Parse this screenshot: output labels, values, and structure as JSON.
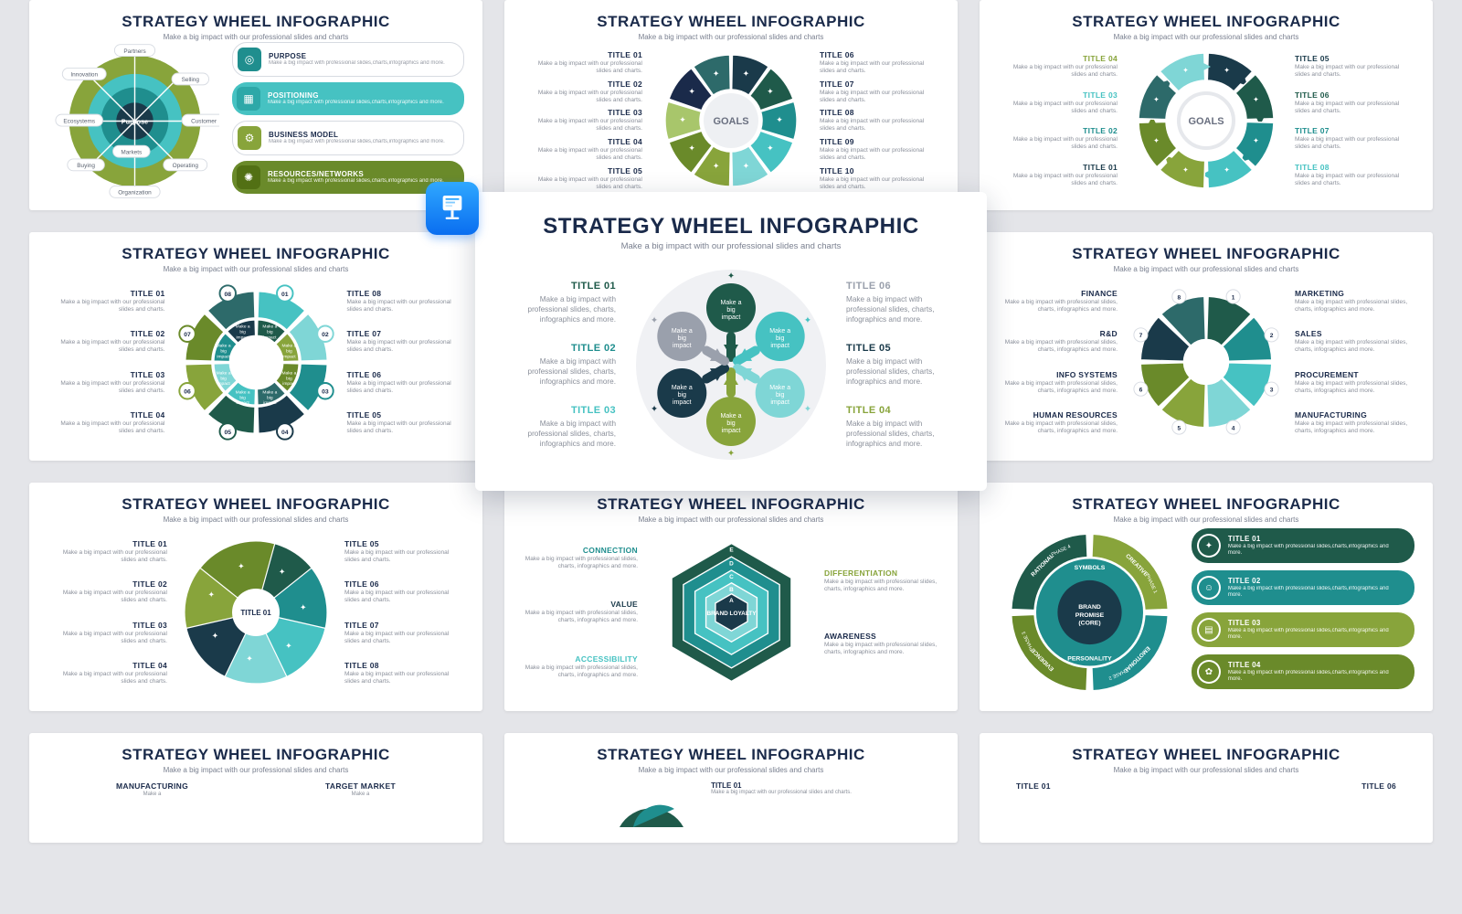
{
  "common": {
    "title": "STRATEGY WHEEL INFOGRAPHIC",
    "subtitle": "Make a big impact with our professional slides and charts",
    "desc_short": "Make a big impact with our professional slides and charts.",
    "desc_long": "Make a big impact with professional slides, charts, infographics and more."
  },
  "palette": {
    "olive": "#88a43b",
    "olive_dark": "#6a8a2a",
    "navy": "#1a3a4a",
    "teal": "#1f8e8e",
    "teal_light": "#46c2c2",
    "aqua": "#7fd6d6",
    "forest": "#1f5a4a",
    "gray": "#9aa0ac",
    "gray_light": "#d9dce2",
    "title_color": "#1a2a4a"
  },
  "main": {
    "title": "STRATEGY WHEEL INFOGRAPHIC",
    "subtitle": "Make a big impact with our professional slides and charts",
    "left": [
      {
        "label": "TITLE 01",
        "color": "#1f5a4a"
      },
      {
        "label": "TITLE 02",
        "color": "#1f8e8e"
      },
      {
        "label": "TITLE 03",
        "color": "#46c2c2"
      }
    ],
    "right": [
      {
        "label": "TITLE 06",
        "color": "#9aa0ac"
      },
      {
        "label": "TITLE 05",
        "color": "#1a3a4a"
      },
      {
        "label": "TITLE 04",
        "color": "#88a43b"
      }
    ],
    "desc": "Make a big impact with professional slides, charts, infographics and more.",
    "bubble_text": "Make a big impact",
    "bubble_colors": [
      "#1f5a4a",
      "#46c2c2",
      "#7fd6d6",
      "#88a43b",
      "#1a3a4a",
      "#9aa0ac"
    ],
    "bg_circle": "#f0f1f4"
  },
  "slide1": {
    "center": "Purpose",
    "ring_labels": [
      "Partners",
      "Selling",
      "Customer",
      "Operating",
      "Organization",
      "Buying",
      "Markets",
      "Ecosystems",
      "Innovation"
    ],
    "ring_colors_outer": "#88a43b",
    "ring_colors_inner": "#1f8e8e",
    "pills": [
      {
        "label": "PURPOSE",
        "color": "#1f8e8e",
        "outline": true
      },
      {
        "label": "POSITIONING",
        "color": "#46c2c2",
        "outline": false
      },
      {
        "label": "BUSINESS MODEL",
        "color": "#88a43b",
        "outline": true
      },
      {
        "label": "RESOURCES/NETWORKS",
        "color": "#6a8a2a",
        "outline": false
      }
    ],
    "pill_desc": "Make a big impact with professional slides,charts,infographics and more."
  },
  "slide2": {
    "center": "GOALS",
    "segments": 10,
    "colors": [
      "#1a3a4a",
      "#1f5a4a",
      "#1f8e8e",
      "#46c2c2",
      "#7fd6d6",
      "#88a43b",
      "#6a8a2a",
      "#a8c66b",
      "#1a2a4a",
      "#2d6a6a"
    ],
    "left_titles": [
      "TITLE 01",
      "TITLE 02",
      "TITLE 03",
      "TITLE 04",
      "TITLE 05"
    ],
    "right_titles": [
      "TITLE 06",
      "TITLE 07",
      "TITLE 08",
      "TITLE 09",
      "TITLE 10"
    ]
  },
  "slide3": {
    "center": "GOALS",
    "segments": 8,
    "arrow_colors": [
      "#1a3a4a",
      "#1f5a4a",
      "#1f8e8e",
      "#46c2c2",
      "#88a43b",
      "#6a8a2a",
      "#2d6a6a",
      "#7fd6d6"
    ],
    "left_titles": [
      "TITLE 04",
      "TITLE 03",
      "TITLE 02",
      "TITLE 01"
    ],
    "left_colors": [
      "#88a43b",
      "#46c2c2",
      "#1f8e8e",
      "#1a3a4a"
    ],
    "right_titles": [
      "TITLE 05",
      "TITLE 06",
      "TITLE 07",
      "TITLE 08"
    ],
    "right_colors": [
      "#1a3a4a",
      "#1f5a4a",
      "#1f8e8e",
      "#46c2c2"
    ]
  },
  "slide4": {
    "segments": 8,
    "inner_text": "Make a big impact",
    "seg_colors": [
      "#46c2c2",
      "#7fd6d6",
      "#1f8e8e",
      "#1a3a4a",
      "#1f5a4a",
      "#88a43b",
      "#6a8a2a",
      "#2d6a6a"
    ],
    "left_titles": [
      "TITLE 01",
      "TITLE 02",
      "TITLE 03",
      "TITLE 04"
    ],
    "right_titles": [
      "TITLE 08",
      "TITLE 07",
      "TITLE 06",
      "TITLE 05"
    ]
  },
  "slide6": {
    "segments": 8,
    "numbers": [
      "1",
      "2",
      "3",
      "4",
      "5",
      "6",
      "7",
      "8"
    ],
    "seg_colors": [
      "#1f5a4a",
      "#1f8e8e",
      "#46c2c2",
      "#7fd6d6",
      "#88a43b",
      "#6a8a2a",
      "#1a3a4a",
      "#2d6a6a"
    ],
    "left_titles": [
      "FINANCE",
      "R&D",
      "INFO SYSTEMS",
      "HUMAN RESOURCES"
    ],
    "right_titles": [
      "MARKETING",
      "SALES",
      "PROCUREMENT",
      "MANUFACTURING"
    ]
  },
  "slide7": {
    "center": "TITLE 01",
    "segments": 7,
    "seg_colors": [
      "#1f5a4a",
      "#1f8e8e",
      "#46c2c2",
      "#7fd6d6",
      "#1a3a4a",
      "#88a43b",
      "#6a8a2a"
    ],
    "left_titles": [
      "TITLE 01",
      "TITLE 02",
      "TITLE 03",
      "TITLE 04"
    ],
    "right_titles": [
      "TITLE 05",
      "TITLE 06",
      "TITLE 07",
      "TITLE 08"
    ]
  },
  "slide8": {
    "hex_levels": [
      "E",
      "D",
      "C",
      "B",
      "A"
    ],
    "hex_colors": [
      "#1f5a4a",
      "#1f8e8e",
      "#46c2c2",
      "#7fd6d6",
      "#1a3a4a"
    ],
    "center": "BRAND LOYALTY",
    "left_titles": [
      "CONNECTION",
      "VALUE",
      "ACCESSIBILITY"
    ],
    "left_colors": [
      "#1f8e8e",
      "#1a3a4a",
      "#46c2c2"
    ],
    "right_titles": [
      "DIFFERENTIATION",
      "AWARENESS"
    ],
    "right_colors": [
      "#88a43b",
      "#1a2a4a"
    ]
  },
  "slide9": {
    "center": "BRAND PROMISE (CORE)",
    "ring_labels": [
      "SYMBOLS",
      "PERSONALITY"
    ],
    "quad_labels": [
      "CREATIVE",
      "EMOTIONAL",
      "EVIDENCE",
      "RATIONAL"
    ],
    "phase_labels": [
      "PHASE 1",
      "PHASE 2",
      "PHASE 3",
      "PHASE 4"
    ],
    "quad_colors": [
      "#88a43b",
      "#1f8e8e",
      "#6a8a2a",
      "#1f5a4a"
    ],
    "pills": [
      {
        "label": "TITLE 01",
        "color": "#1f5a4a"
      },
      {
        "label": "TITLE 02",
        "color": "#1f8e8e"
      },
      {
        "label": "TITLE 03",
        "color": "#88a43b"
      },
      {
        "label": "TITLE 04",
        "color": "#6a8a2a"
      }
    ],
    "pill_desc": "Make a big impact with professional slides,charts,infographics and more."
  },
  "slide_bottom": {
    "left_labels": [
      "MANUFACTURING",
      "TARGET MARKET"
    ],
    "mid_left_titles": [
      "TITLE 01"
    ],
    "right_titles": [
      "TITLE 01",
      "TITLE 06"
    ]
  }
}
